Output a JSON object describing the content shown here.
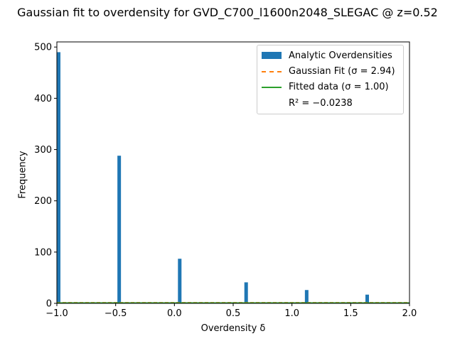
{
  "chart_data": {
    "type": "bar",
    "title": "Gaussian fit to overdensity for GVD_C700_l1600n2048_SLEGAC @ z=0.52",
    "xlabel": "Overdensity δ",
    "ylabel": "Frequency",
    "xlim": [
      -1.0,
      2.0
    ],
    "ylim": [
      0,
      510
    ],
    "xticks": [
      "−1.0",
      "−0.5",
      "0.0",
      "0.5",
      "1.0",
      "1.5",
      "2.0"
    ],
    "xtick_values": [
      -1.0,
      -0.5,
      0.0,
      0.5,
      1.0,
      1.5,
      2.0
    ],
    "yticks": [
      "0",
      "100",
      "200",
      "300",
      "400",
      "500"
    ],
    "ytick_values": [
      0,
      100,
      200,
      300,
      400,
      500
    ],
    "grid": false,
    "legend_position": "top-right",
    "series": [
      {
        "name": "Analytic Overdensities",
        "kind": "histogram",
        "color": "#1f77b4",
        "bins": [
          {
            "x": -1.0,
            "value": 490
          },
          {
            "x": -0.485,
            "value": 288
          },
          {
            "x": 0.03,
            "value": 87
          },
          {
            "x": 0.595,
            "value": 41
          },
          {
            "x": 1.11,
            "value": 26
          },
          {
            "x": 1.625,
            "value": 17
          }
        ]
      },
      {
        "name": "Gaussian Fit (σ = 2.94)",
        "kind": "line",
        "style": "dashed",
        "color": "#ff7f0e",
        "level": 1.5
      },
      {
        "name": "Fitted data (σ = 1.00)",
        "kind": "line",
        "style": "solid",
        "color": "#2ca02c",
        "level": 1.0
      }
    ],
    "annotation": "R² = −0.0238"
  }
}
